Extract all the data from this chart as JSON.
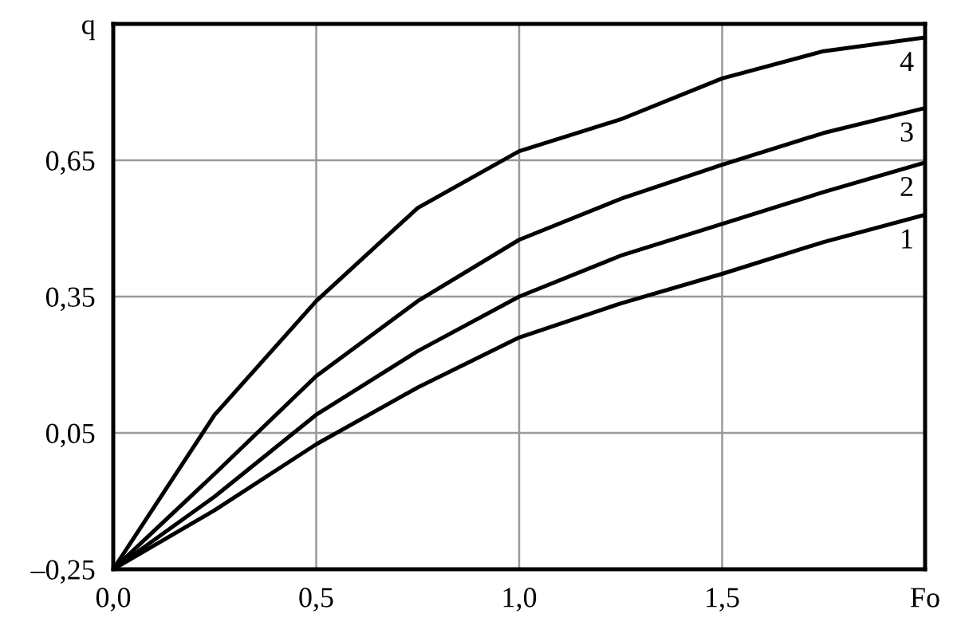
{
  "chart_data": {
    "type": "line",
    "x": [
      0,
      0.25,
      0.5,
      0.75,
      1.0,
      1.25,
      1.5,
      1.75,
      2.0
    ],
    "series": [
      {
        "name": "1",
        "color": "#000000",
        "values": [
          -0.25,
          -0.12,
          0.025,
          0.15,
          0.26,
          0.335,
          0.4,
          0.47,
          0.53
        ]
      },
      {
        "name": "2",
        "color": "#000000",
        "values": [
          -0.25,
          -0.09,
          0.09,
          0.23,
          0.35,
          0.44,
          0.51,
          0.58,
          0.645
        ]
      },
      {
        "name": "3",
        "color": "#000000",
        "values": [
          -0.25,
          -0.04,
          0.175,
          0.34,
          0.475,
          0.565,
          0.64,
          0.71,
          0.765
        ]
      },
      {
        "name": "4",
        "color": "#000000",
        "values": [
          -0.25,
          0.09,
          0.34,
          0.545,
          0.67,
          0.74,
          0.83,
          0.89,
          0.92
        ]
      }
    ],
    "xlim": [
      0,
      2.0
    ],
    "ylim": [
      -0.25,
      0.95
    ],
    "xticks": [
      {
        "value": 0,
        "label": "0,0"
      },
      {
        "value": 0.5,
        "label": "0,5"
      },
      {
        "value": 1.0,
        "label": "1,0"
      },
      {
        "value": 1.5,
        "label": "1,5"
      },
      {
        "value": 2.0,
        "label": "Fo"
      }
    ],
    "yticks": [
      {
        "value": -0.25,
        "label": "–0,25"
      },
      {
        "value": 0.05,
        "label": "0,05"
      },
      {
        "value": 0.35,
        "label": "0,35"
      },
      {
        "value": 0.65,
        "label": "0,65"
      },
      {
        "value": 0.95,
        "label": "q"
      }
    ],
    "grid": true,
    "marker": "none",
    "line_style": "solid",
    "legend": false
  }
}
